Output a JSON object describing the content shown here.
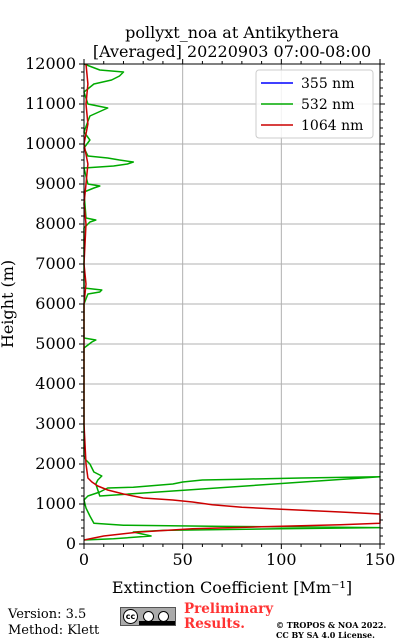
{
  "chart_data": {
    "type": "line",
    "title_line1": "pollyxt_noa at Antikythera",
    "title_line2": "[Averaged] 20220903 07:00-08:00",
    "xlabel": "Extinction Coefficient [Mm⁻¹]",
    "ylabel": "Height (m)",
    "xlim": [
      0,
      150
    ],
    "ylim": [
      0,
      12000
    ],
    "xticks": [
      0,
      50,
      100,
      150
    ],
    "yticks": [
      0,
      1000,
      2000,
      3000,
      4000,
      5000,
      6000,
      7000,
      8000,
      9000,
      10000,
      11000,
      12000
    ],
    "grid": true,
    "legend_position": "top-right",
    "series": [
      {
        "name": "355 nm",
        "color": "#0000ff",
        "points": []
      },
      {
        "name": "532 nm",
        "color": "#00aa00",
        "points": [
          [
            0,
            100
          ],
          [
            15,
            130
          ],
          [
            34,
            200
          ],
          [
            25,
            300
          ],
          [
            40,
            340
          ],
          [
            100,
            380
          ],
          [
            150,
            410
          ],
          [
            70,
            440
          ],
          [
            20,
            470
          ],
          [
            5,
            520
          ],
          [
            3,
            700
          ],
          [
            1,
            900
          ],
          [
            0,
            1100
          ],
          [
            2,
            1200
          ],
          [
            8,
            1300
          ],
          [
            12,
            1400
          ],
          [
            25,
            1420
          ],
          [
            45,
            1500
          ],
          [
            50,
            1550
          ],
          [
            60,
            1600
          ],
          [
            80,
            1620
          ],
          [
            110,
            1650
          ],
          [
            150,
            1680
          ],
          [
            8,
            1200
          ],
          [
            6,
            1500
          ],
          [
            7,
            1600
          ],
          [
            9,
            1700
          ],
          [
            5,
            1800
          ],
          [
            4,
            1900
          ],
          [
            3,
            2000
          ],
          [
            1,
            2100
          ],
          [
            0,
            2200
          ],
          [
            0,
            3000
          ],
          [
            0,
            4000
          ],
          [
            0,
            4900
          ],
          [
            4,
            5050
          ],
          [
            6,
            5100
          ],
          [
            0,
            5150
          ],
          [
            0,
            6000
          ],
          [
            2,
            6250
          ],
          [
            8,
            6300
          ],
          [
            9,
            6350
          ],
          [
            0,
            6400
          ],
          [
            0,
            7900
          ],
          [
            3,
            8050
          ],
          [
            6,
            8100
          ],
          [
            1,
            8150
          ],
          [
            0,
            8800
          ],
          [
            5,
            8900
          ],
          [
            8,
            8950
          ],
          [
            2,
            9000
          ],
          [
            0,
            9400
          ],
          [
            15,
            9450
          ],
          [
            22,
            9500
          ],
          [
            25,
            9550
          ],
          [
            18,
            9600
          ],
          [
            12,
            9650
          ],
          [
            2,
            9700
          ],
          [
            0,
            9900
          ],
          [
            3,
            10100
          ],
          [
            0,
            10300
          ],
          [
            3,
            10700
          ],
          [
            12,
            10900
          ],
          [
            2,
            11000
          ],
          [
            0,
            11300
          ],
          [
            5,
            11500
          ],
          [
            14,
            11600
          ],
          [
            18,
            11700
          ],
          [
            20,
            11800
          ],
          [
            8,
            11850
          ],
          [
            0,
            12000
          ]
        ]
      },
      {
        "name": "1064 nm",
        "color": "#cc0000",
        "points": [
          [
            0,
            100
          ],
          [
            10,
            200
          ],
          [
            28,
            300
          ],
          [
            55,
            380
          ],
          [
            90,
            430
          ],
          [
            130,
            480
          ],
          [
            150,
            520
          ],
          [
            150,
            750
          ],
          [
            130,
            800
          ],
          [
            100,
            870
          ],
          [
            80,
            920
          ],
          [
            65,
            980
          ],
          [
            55,
            1050
          ],
          [
            45,
            1100
          ],
          [
            30,
            1150
          ],
          [
            20,
            1250
          ],
          [
            12,
            1350
          ],
          [
            7,
            1450
          ],
          [
            4,
            1550
          ],
          [
            2,
            1650
          ],
          [
            1,
            2000
          ],
          [
            0,
            3000
          ],
          [
            0,
            5000
          ],
          [
            0,
            6000
          ],
          [
            1,
            6500
          ],
          [
            0,
            7000
          ],
          [
            1,
            8000
          ],
          [
            0,
            8500
          ],
          [
            1,
            9000
          ],
          [
            2,
            9500
          ],
          [
            0,
            10000
          ],
          [
            2,
            10500
          ],
          [
            1,
            11000
          ],
          [
            2,
            11500
          ],
          [
            1,
            12000
          ]
        ]
      }
    ]
  },
  "footer": {
    "version": "Version: 3.5",
    "method": "Method: Klett",
    "preliminary_line1": "Preliminary",
    "preliminary_line2": "Results.",
    "copyright_line1": "© TROPOS & NOA 2022.",
    "copyright_line2": "CC BY SA 4.0 License."
  }
}
